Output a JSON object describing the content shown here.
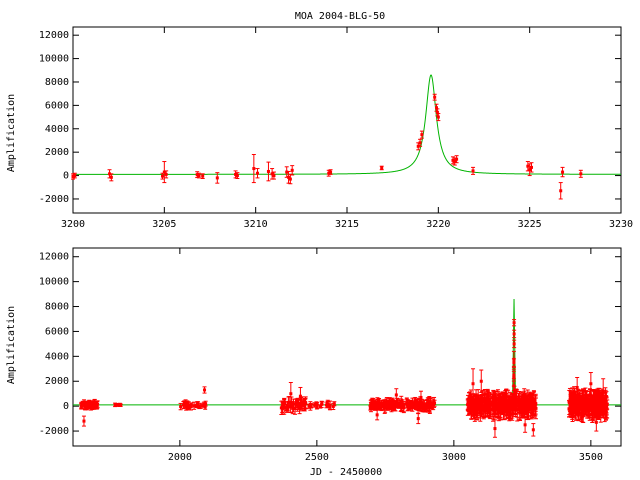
{
  "title": "MOA 2004-BLG-50",
  "colors": {
    "data": "#ff0000",
    "model": "#00b400",
    "axes": "#000000"
  },
  "chart_data": [
    {
      "type": "scatter",
      "title": "MOA 2004-BLG-50",
      "xlabel": "",
      "ylabel": "Amplification",
      "xlim": [
        3200,
        3230
      ],
      "ylim": [
        -3200,
        12700
      ],
      "xticks": [
        3200,
        3205,
        3210,
        3215,
        3220,
        3225,
        3230
      ],
      "yticks": [
        -2000,
        0,
        2000,
        4000,
        6000,
        8000,
        10000,
        12000
      ],
      "grid": false,
      "model_curve": {
        "t0": 3219.6,
        "peak": 8500,
        "width": 0.35,
        "baseline": 100
      },
      "points": [
        [
          3200.0,
          -80,
          220
        ],
        [
          3200.1,
          0,
          200
        ],
        [
          3202.0,
          150,
          350
        ],
        [
          3202.1,
          -150,
          300
        ],
        [
          3204.9,
          -50,
          250
        ],
        [
          3205.0,
          300,
          900
        ],
        [
          3205.1,
          100,
          300
        ],
        [
          3206.8,
          80,
          250
        ],
        [
          3206.9,
          0,
          200
        ],
        [
          3207.1,
          -50,
          200
        ],
        [
          3207.9,
          -200,
          450
        ],
        [
          3208.9,
          100,
          300
        ],
        [
          3209.0,
          0,
          250
        ],
        [
          3209.9,
          600,
          1200
        ],
        [
          3210.1,
          200,
          400
        ],
        [
          3210.7,
          350,
          800
        ],
        [
          3210.9,
          150,
          450
        ],
        [
          3211.0,
          0,
          300
        ],
        [
          3211.7,
          300,
          450
        ],
        [
          3211.8,
          -150,
          500
        ],
        [
          3212.0,
          450,
          400
        ],
        [
          3211.9,
          -300,
          400
        ],
        [
          3214.0,
          200,
          250
        ],
        [
          3214.1,
          300,
          200
        ],
        [
          3216.9,
          650,
          150
        ],
        [
          3218.9,
          2500,
          300
        ],
        [
          3219.0,
          2800,
          300
        ],
        [
          3219.1,
          3500,
          300
        ],
        [
          3219.8,
          6700,
          250
        ],
        [
          3219.9,
          5800,
          300
        ],
        [
          3219.95,
          5400,
          300
        ],
        [
          3220.0,
          5000,
          300
        ],
        [
          3220.8,
          1300,
          300
        ],
        [
          3220.9,
          1200,
          300
        ],
        [
          3221.0,
          1400,
          300
        ],
        [
          3221.9,
          400,
          300
        ],
        [
          3224.9,
          800,
          400
        ],
        [
          3225.0,
          500,
          500
        ],
        [
          3225.1,
          700,
          400
        ],
        [
          3226.7,
          -1300,
          700
        ],
        [
          3226.8,
          300,
          400
        ],
        [
          3227.8,
          150,
          300
        ]
      ]
    },
    {
      "type": "scatter",
      "title": "",
      "xlabel": "JD - 2450000",
      "ylabel": "Amplification",
      "xlim": [
        1610,
        3610
      ],
      "ylim": [
        -3200,
        12700
      ],
      "xticks": [
        2000,
        2500,
        3000,
        3500
      ],
      "yticks": [
        -2000,
        0,
        2000,
        4000,
        6000,
        8000,
        10000,
        12000
      ],
      "grid": false,
      "model_curve": {
        "t0": 3219.6,
        "peak": 8500,
        "width": 0.35,
        "baseline": 100
      },
      "seasons": [
        {
          "start": 1640,
          "end": 1700,
          "count": 45,
          "spread": 180,
          "err": 280
        },
        {
          "start": 1760,
          "end": 1790,
          "count": 6,
          "spread": 60,
          "err": 120
        },
        {
          "start": 1990,
          "end": 2095,
          "count": 25,
          "spread": 180,
          "err": 250
        },
        {
          "start": 2370,
          "end": 2460,
          "count": 45,
          "spread": 300,
          "err": 450
        },
        {
          "start": 2470,
          "end": 2570,
          "count": 18,
          "spread": 150,
          "err": 300
        },
        {
          "start": 2695,
          "end": 2930,
          "count": 160,
          "spread": 250,
          "err": 380
        },
        {
          "start": 3050,
          "end": 3300,
          "count": 330,
          "spread": 420,
          "err": 800
        },
        {
          "start": 3420,
          "end": 3560,
          "count": 220,
          "spread": 420,
          "err": 900
        }
      ],
      "points": [
        [
          1650,
          -1200,
          400
        ],
        [
          2090,
          1300,
          250
        ],
        [
          2405,
          1000,
          900
        ],
        [
          2440,
          800,
          700
        ],
        [
          2720,
          -700,
          400
        ],
        [
          2790,
          900,
          500
        ],
        [
          2870,
          -1000,
          400
        ],
        [
          2880,
          700,
          500
        ],
        [
          3070,
          1800,
          1200
        ],
        [
          3100,
          2000,
          900
        ],
        [
          3150,
          -1800,
          700
        ],
        [
          3260,
          -1500,
          600
        ],
        [
          3290,
          -1900,
          500
        ],
        [
          3214,
          200,
          250
        ],
        [
          3217,
          650,
          150
        ],
        [
          3219,
          2500,
          300
        ],
        [
          3219.1,
          3500,
          300
        ],
        [
          3219.8,
          6700,
          250
        ],
        [
          3219.9,
          5800,
          300
        ],
        [
          3220,
          5000,
          300
        ],
        [
          3221,
          1300,
          300
        ],
        [
          3450,
          1500,
          800
        ],
        [
          3500,
          1800,
          900
        ],
        [
          3520,
          -1300,
          700
        ],
        [
          3545,
          1200,
          1000
        ]
      ]
    }
  ]
}
